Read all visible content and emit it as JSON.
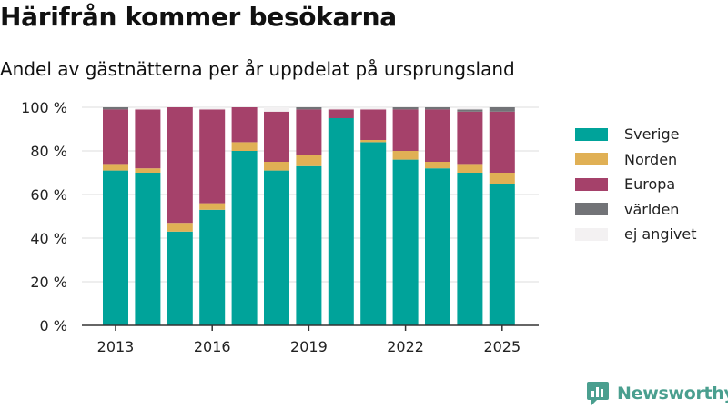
{
  "title": "Härifrån kommer besökarna",
  "subtitle": "Andel av gästnätterna per år uppdelat på ursprungsland",
  "brand": {
    "name": "Newsworthy",
    "icon": "newsworthy-logo-icon"
  },
  "colors": {
    "Sverige": "#00a39a",
    "Norden": "#e0b055",
    "Europa": "#a5416a",
    "världen": "#727377",
    "ej angivet": "#f3f1f2",
    "axis": "#333333",
    "grid": "#dddddd",
    "brand": "#4a9f8f"
  },
  "chart_data": {
    "type": "bar",
    "stacked": true,
    "categories": [
      "2013",
      "2014",
      "2015",
      "2016",
      "2017",
      "2018",
      "2019",
      "2020",
      "2021",
      "2022",
      "2023",
      "2024",
      "2025"
    ],
    "x_tick_labels": [
      "2013",
      "2016",
      "2019",
      "2022",
      "2025"
    ],
    "y_tick_labels": [
      "0 %",
      "20 %",
      "40 %",
      "60 %",
      "80 %",
      "100 %"
    ],
    "ylim": [
      0,
      100
    ],
    "xlabel": "",
    "ylabel": "",
    "grid": true,
    "legend_position": "right",
    "series": [
      {
        "name": "Sverige",
        "values": [
          71,
          70,
          43,
          53,
          80,
          71,
          73,
          95,
          84,
          76,
          72,
          70,
          65
        ]
      },
      {
        "name": "Norden",
        "values": [
          3,
          2,
          4,
          3,
          4,
          4,
          5,
          0,
          1,
          4,
          3,
          4,
          5
        ]
      },
      {
        "name": "Europa",
        "values": [
          25,
          27,
          53,
          43,
          16,
          23,
          21,
          4,
          14,
          19,
          24,
          24,
          28
        ]
      },
      {
        "name": "världen",
        "values": [
          1,
          0,
          0,
          0,
          0,
          0,
          1,
          0,
          0,
          1,
          1,
          1,
          2
        ]
      },
      {
        "name": "ej angivet",
        "values": [
          0,
          1,
          0,
          1,
          0,
          2,
          0,
          1,
          1,
          0,
          0,
          1,
          0
        ]
      }
    ]
  }
}
